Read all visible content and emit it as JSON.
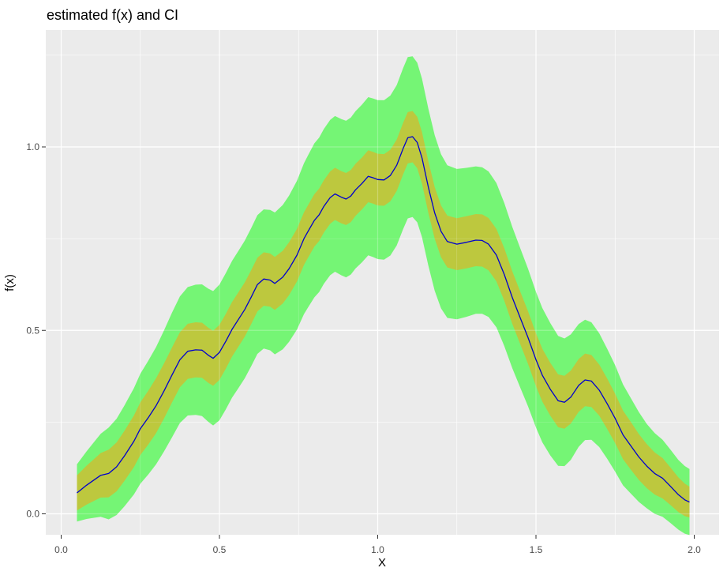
{
  "title": "estimated f(x) and CI",
  "axes": {
    "x_label": "X",
    "y_label": "f(x)",
    "x_tick_labels": [
      "0.0",
      "0.5",
      "1.0",
      "1.5",
      "2.0"
    ],
    "x_tick_values": [
      0,
      0.5,
      1.0,
      1.5,
      2.0
    ],
    "x_minor_values": [
      0.25,
      0.75,
      1.25,
      1.75
    ],
    "y_tick_labels": [
      "0.0",
      "0.5",
      "1.0"
    ],
    "y_tick_values": [
      0,
      0.5,
      1.0
    ],
    "y_minor_values": [
      0.25,
      0.75,
      1.25
    ]
  },
  "colors": {
    "panel_background": "#EBEBEB",
    "gridline": "#FFFFFF",
    "outer_band": "#75F575",
    "inner_band": "#BDC83E",
    "fit_line": "#0000CD",
    "tick_text": "#4D4D4D",
    "tick_mark": "#333333",
    "title_text": "#000000"
  },
  "chart_data": {
    "type": "area",
    "title": "estimated f(x) and CI",
    "xlabel": "X",
    "ylabel": "f(x)",
    "xlim": [
      -0.05,
      2.08
    ],
    "ylim": [
      -0.06,
      1.31
    ],
    "grid": true,
    "legend": false,
    "description": "Estimated regression curve f(x) with inner (olive) and outer (green) confidence bands, ribbons spanning X 0.05 to 1.985",
    "series": [
      {
        "name": "estimate",
        "x": [
          0.05,
          0.08,
          0.1,
          0.125,
          0.15,
          0.175,
          0.2,
          0.23,
          0.25,
          0.275,
          0.3,
          0.325,
          0.35,
          0.375,
          0.4,
          0.425,
          0.445,
          0.465,
          0.48,
          0.5,
          0.52,
          0.54,
          0.56,
          0.58,
          0.6,
          0.62,
          0.64,
          0.66,
          0.675,
          0.7,
          0.72,
          0.745,
          0.767,
          0.78,
          0.8,
          0.815,
          0.83,
          0.85,
          0.865,
          0.885,
          0.9,
          0.915,
          0.93,
          0.95,
          0.97,
          0.985,
          1.0,
          1.02,
          1.04,
          1.06,
          1.08,
          1.095,
          1.11,
          1.125,
          1.14,
          1.16,
          1.18,
          1.2,
          1.22,
          1.25,
          1.28,
          1.31,
          1.33,
          1.35,
          1.375,
          1.4,
          1.425,
          1.45,
          1.475,
          1.5,
          1.52,
          1.545,
          1.57,
          1.59,
          1.61,
          1.635,
          1.655,
          1.675,
          1.7,
          1.725,
          1.75,
          1.775,
          1.8,
          1.825,
          1.85,
          1.875,
          1.9,
          1.925,
          1.95,
          1.97,
          1.985
        ],
        "y": [
          0.057,
          0.078,
          0.09,
          0.105,
          0.11,
          0.128,
          0.158,
          0.198,
          0.232,
          0.262,
          0.295,
          0.335,
          0.378,
          0.42,
          0.443,
          0.447,
          0.446,
          0.432,
          0.424,
          0.44,
          0.47,
          0.503,
          0.53,
          0.557,
          0.59,
          0.625,
          0.64,
          0.637,
          0.628,
          0.645,
          0.668,
          0.705,
          0.75,
          0.77,
          0.8,
          0.815,
          0.838,
          0.862,
          0.872,
          0.863,
          0.858,
          0.866,
          0.883,
          0.9,
          0.92,
          0.916,
          0.911,
          0.91,
          0.922,
          0.95,
          0.995,
          1.025,
          1.028,
          1.012,
          0.97,
          0.89,
          0.82,
          0.77,
          0.742,
          0.735,
          0.74,
          0.746,
          0.745,
          0.735,
          0.705,
          0.652,
          0.59,
          0.535,
          0.48,
          0.42,
          0.378,
          0.34,
          0.308,
          0.304,
          0.318,
          0.35,
          0.365,
          0.362,
          0.337,
          0.3,
          0.26,
          0.215,
          0.185,
          0.155,
          0.13,
          0.11,
          0.097,
          0.075,
          0.052,
          0.038,
          0.032
        ]
      }
    ],
    "bands": {
      "inner": {
        "name": "inner CI half-width",
        "x": [
          0.05,
          0.15,
          0.3,
          0.5,
          0.7,
          1.1,
          1.5,
          1.65,
          1.8,
          1.9,
          1.985
        ],
        "hw": [
          0.048,
          0.065,
          0.075,
          0.075,
          0.072,
          0.07,
          0.072,
          0.072,
          0.065,
          0.055,
          0.042
        ]
      },
      "outer": {
        "name": "outer CI half-width",
        "x": [
          0.05,
          0.15,
          0.25,
          0.35,
          0.5,
          0.65,
          0.8,
          0.95,
          1.1,
          1.25,
          1.4,
          1.55,
          1.65,
          1.75,
          1.85,
          1.95,
          1.985
        ],
        "hw": [
          0.078,
          0.125,
          0.15,
          0.17,
          0.185,
          0.19,
          0.21,
          0.215,
          0.22,
          0.205,
          0.195,
          0.18,
          0.165,
          0.145,
          0.115,
          0.095,
          0.09
        ]
      }
    }
  }
}
